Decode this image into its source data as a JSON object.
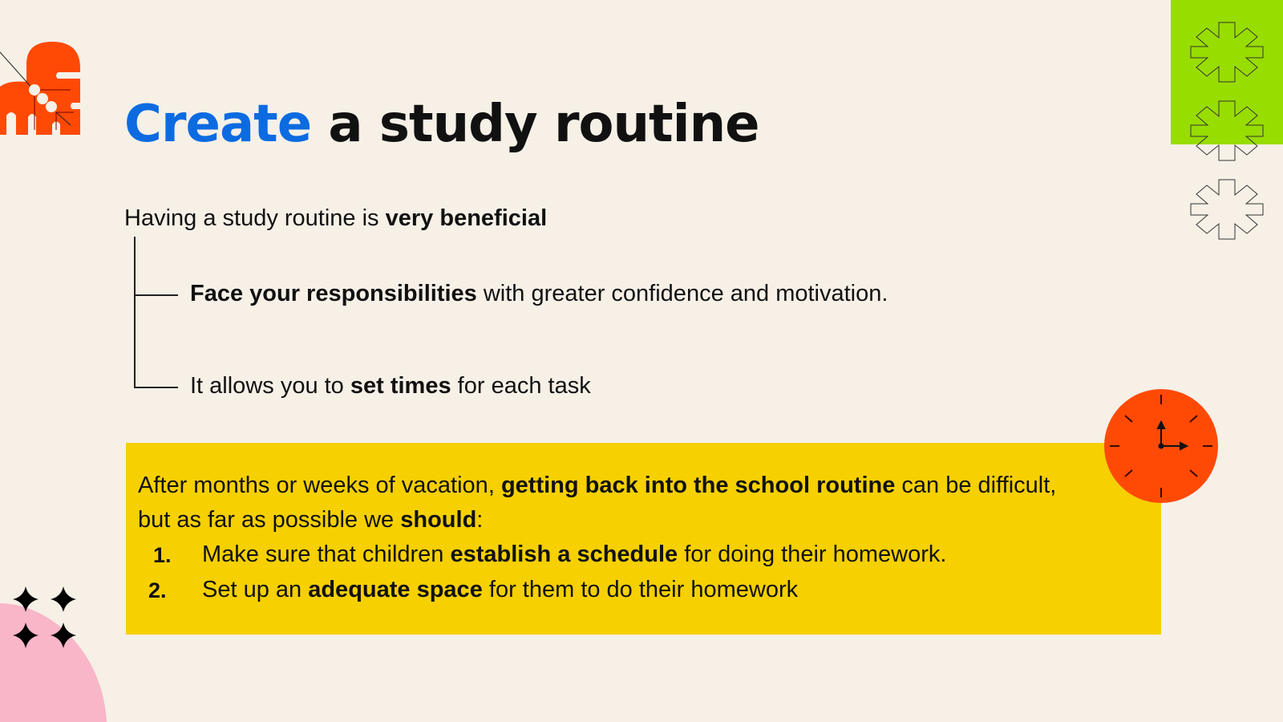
{
  "title": {
    "accent": "Create",
    "rest": " a study routine"
  },
  "intro": {
    "normal": "Having a study routine is ",
    "bold": "very beneficial"
  },
  "points": [
    {
      "bold": "Face your responsibilities",
      "normal": " with greater confidence and motivation."
    },
    {
      "normal_before": "It allows you to ",
      "bold": "set times",
      "normal_after": " for each task"
    }
  ],
  "callout": {
    "line1": {
      "a": "After months or weeks of vacation, ",
      "b": "getting back into the school routine",
      "c": " can be difficult,"
    },
    "line2": {
      "a": "but as far as possible we ",
      "b": "should",
      "c": ":"
    },
    "items": [
      {
        "num": "1.",
        "a": "Make sure that children ",
        "b": "establish a schedule",
        "c": " for doing their homework."
      },
      {
        "num": "2.",
        "a": "Set up an ",
        "b": "adequate space",
        "c": " for them to do their homework"
      }
    ]
  },
  "colors": {
    "accent": "#0c6be0",
    "orange": "#ff4a06",
    "green": "#98dd00",
    "yellow": "#f6d000",
    "pink": "#f9b6c8",
    "background": "#f6f0e7"
  },
  "icons": [
    "abstract-orange-shape",
    "gear-outline-icon",
    "clock-icon",
    "sparkle-icon"
  ]
}
